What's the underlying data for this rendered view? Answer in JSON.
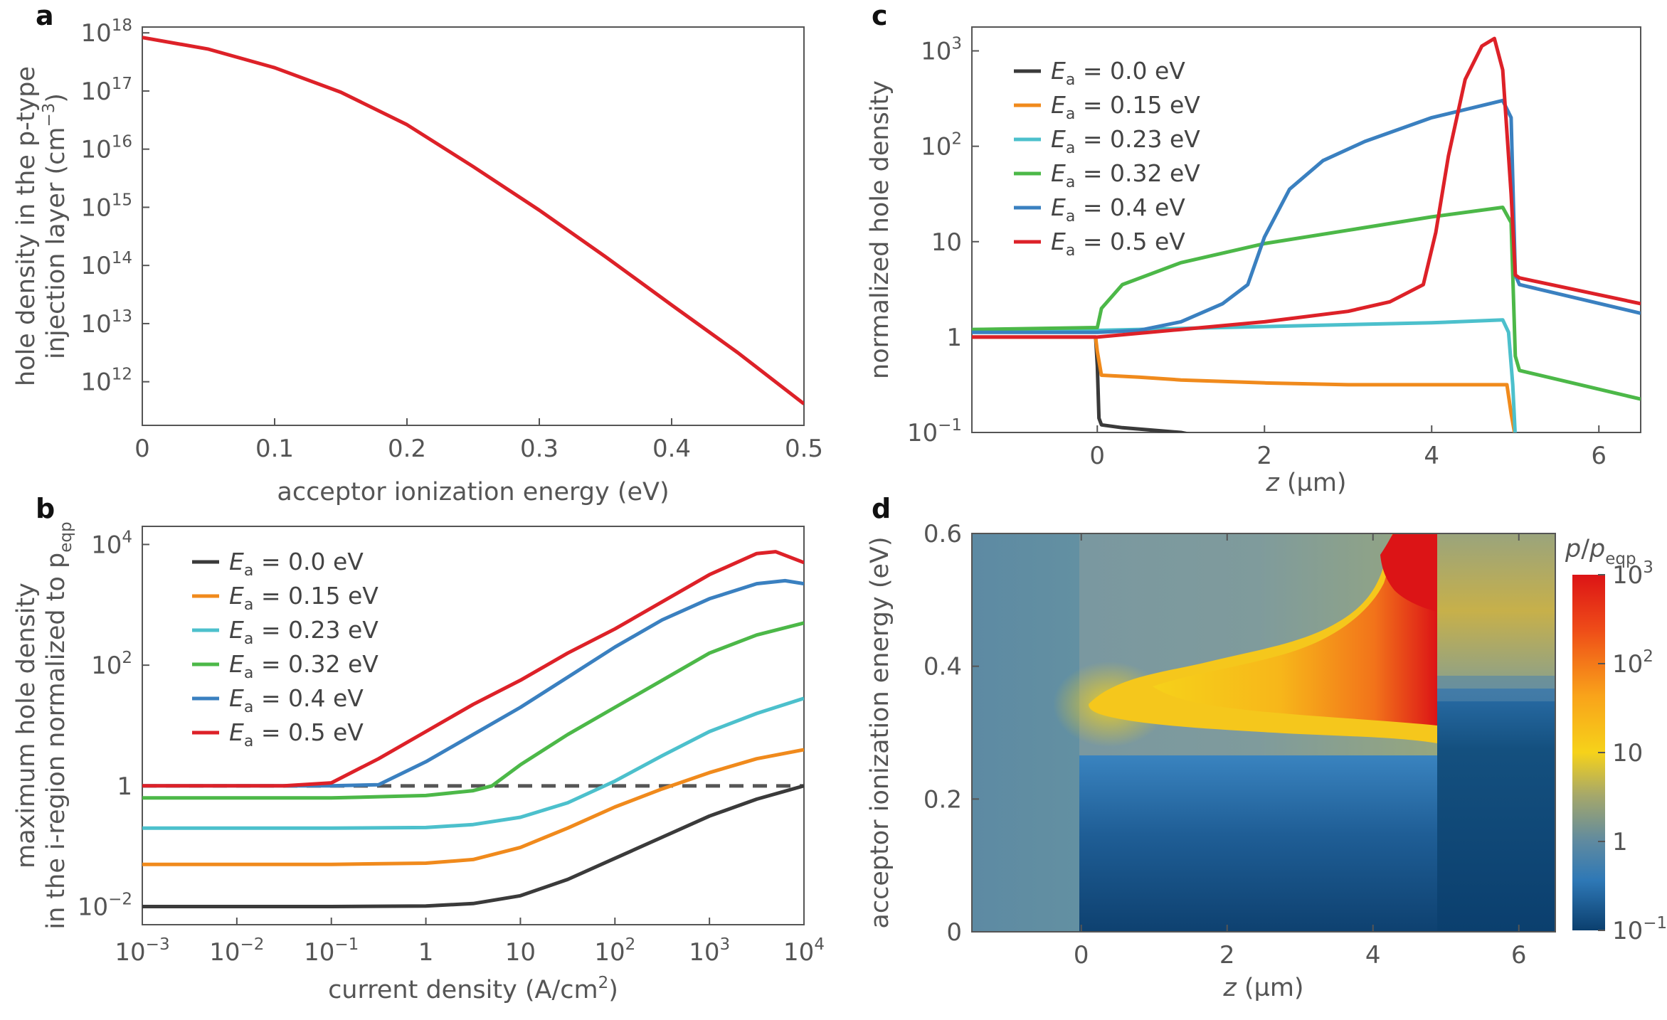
{
  "colors": {
    "Ea_0.0": "#3a3a3a",
    "Ea_0.15": "#f08a1c",
    "Ea_0.23": "#4cc0cc",
    "Ea_0.32": "#4cb848",
    "Ea_0.4": "#3a80c0",
    "Ea_0.5": "#dd2128",
    "axis": "#555555",
    "dashed": "#555555"
  },
  "chart_data": [
    {
      "panel": "a",
      "type": "line",
      "xlabel": "acceptor ionization energy (eV)",
      "ylabel_line1": "hole density in the p-type",
      "ylabel_line2": "injection layer (cm",
      "ylabel_sup": "−3",
      "ylabel_end": ")",
      "xlim": [
        0,
        0.5
      ],
      "ylim_log10": [
        11.25,
        18.1
      ],
      "xticks": [
        "0",
        "0.1",
        "0.2",
        "0.3",
        "0.4",
        "0.5"
      ],
      "yticks": [
        {
          "base": "10",
          "exp": "12"
        },
        {
          "base": "10",
          "exp": "13"
        },
        {
          "base": "10",
          "exp": "14"
        },
        {
          "base": "10",
          "exp": "15"
        },
        {
          "base": "10",
          "exp": "16"
        },
        {
          "base": "10",
          "exp": "17"
        },
        {
          "base": "10",
          "exp": "18"
        }
      ],
      "series": [
        {
          "name": "hole density",
          "color": "#dd2128",
          "x": [
            0,
            0.05,
            0.1,
            0.15,
            0.2,
            0.25,
            0.3,
            0.35,
            0.4,
            0.45,
            0.5
          ],
          "log10y": [
            17.92,
            17.72,
            17.4,
            16.98,
            16.42,
            15.7,
            14.95,
            14.15,
            13.32,
            12.5,
            11.62
          ]
        }
      ]
    },
    {
      "panel": "b",
      "type": "line",
      "xlabel": "current density (A/cm",
      "xlabel_sup": "2",
      "xlabel_end": ")",
      "ylabel_line1": "maximum hole density",
      "ylabel_line2": "in the i-region normalized to p",
      "ylabel_sub": "eqp",
      "xlim_log10": [
        -3,
        4
      ],
      "ylim_log10": [
        -2.3,
        4.3
      ],
      "xticks": [
        {
          "base": "10",
          "exp": "−3"
        },
        {
          "base": "10",
          "exp": "−2"
        },
        {
          "base": "10",
          "exp": "−1"
        },
        {
          "base": "1",
          "exp": ""
        },
        {
          "base": "10",
          "exp": ""
        },
        {
          "base": "10",
          "exp": "2"
        },
        {
          "base": "10",
          "exp": "3"
        },
        {
          "base": "10",
          "exp": "4"
        }
      ],
      "yticks": [
        {
          "base": "10",
          "exp": "−2"
        },
        {
          "base": "1",
          "exp": ""
        },
        {
          "base": "10",
          "exp": "2"
        },
        {
          "base": "10",
          "exp": "4"
        }
      ],
      "reference_line": {
        "log10y": 0,
        "style": "dashed"
      },
      "legend": [
        {
          "label": "E",
          "sub": "a",
          "rest": " = 0.0 eV",
          "color": "#3a3a3a"
        },
        {
          "label": "E",
          "sub": "a",
          "rest": " = 0.15 eV",
          "color": "#f08a1c"
        },
        {
          "label": "E",
          "sub": "a",
          "rest": " = 0.23 eV",
          "color": "#4cc0cc"
        },
        {
          "label": "E",
          "sub": "a",
          "rest": " = 0.32 eV",
          "color": "#4cb848"
        },
        {
          "label": "E",
          "sub": "a",
          "rest": " = 0.4 eV",
          "color": "#3a80c0"
        },
        {
          "label": "E",
          "sub": "a",
          "rest": " = 0.5 eV",
          "color": "#dd2128"
        }
      ],
      "series": [
        {
          "name": "Ea = 0.0 eV",
          "color": "#3a3a3a",
          "log10x": [
            -3,
            -1,
            0,
            0.5,
            1,
            1.5,
            2,
            2.5,
            3,
            3.5,
            4
          ],
          "log10y": [
            -2,
            -2,
            -1.99,
            -1.95,
            -1.82,
            -1.55,
            -1.2,
            -0.85,
            -0.5,
            -0.22,
            0
          ]
        },
        {
          "name": "Ea = 0.15 eV",
          "color": "#f08a1c",
          "log10x": [
            -3,
            -1,
            0,
            0.5,
            1,
            1.5,
            2,
            2.5,
            3,
            3.5,
            4
          ],
          "log10y": [
            -1.3,
            -1.3,
            -1.28,
            -1.22,
            -1.02,
            -0.7,
            -0.35,
            -0.05,
            0.22,
            0.45,
            0.6
          ]
        },
        {
          "name": "Ea = 0.23 eV",
          "color": "#4cc0cc",
          "log10x": [
            -3,
            -1,
            0,
            0.5,
            1,
            1.5,
            2,
            2.5,
            3,
            3.5,
            4
          ],
          "log10y": [
            -0.7,
            -0.7,
            -0.69,
            -0.64,
            -0.52,
            -0.28,
            0.08,
            0.5,
            0.9,
            1.2,
            1.45
          ]
        },
        {
          "name": "Ea = 0.32 eV",
          "color": "#4cb848",
          "log10x": [
            -3,
            -1,
            0,
            0.5,
            0.7,
            1,
            1.5,
            2,
            2.5,
            3,
            3.5,
            4
          ],
          "log10y": [
            -0.2,
            -0.2,
            -0.16,
            -0.08,
            0.0,
            0.35,
            0.85,
            1.3,
            1.75,
            2.2,
            2.5,
            2.7
          ]
        },
        {
          "name": "Ea = 0.4 eV",
          "color": "#3a80c0",
          "log10x": [
            -3,
            -1,
            -0.5,
            0,
            0.5,
            1,
            1.5,
            2,
            2.5,
            3,
            3.5,
            3.8,
            4
          ],
          "log10y": [
            0,
            0,
            0.02,
            0.4,
            0.85,
            1.3,
            1.8,
            2.3,
            2.75,
            3.1,
            3.35,
            3.4,
            3.35
          ]
        },
        {
          "name": "Ea = 0.5 eV",
          "color": "#dd2128",
          "log10x": [
            -3,
            -1.5,
            -1,
            -0.5,
            0,
            0.5,
            1,
            1.5,
            2,
            2.5,
            3,
            3.5,
            3.7,
            4
          ],
          "log10y": [
            0,
            0,
            0.05,
            0.45,
            0.9,
            1.35,
            1.75,
            2.2,
            2.6,
            3.05,
            3.5,
            3.85,
            3.88,
            3.7
          ]
        }
      ]
    },
    {
      "panel": "c",
      "type": "line",
      "xlabel": "z",
      "xlabel_rest": " (µm)",
      "ylabel": "normalized hole density",
      "xlim": [
        -1.5,
        6.5
      ],
      "ylim_log10": [
        -1,
        3.25
      ],
      "xticks": [
        "0",
        "2",
        "4",
        "6"
      ],
      "yticks": [
        {
          "base": "10",
          "exp": "−1"
        },
        {
          "base": "1",
          "exp": ""
        },
        {
          "base": "10",
          "exp": ""
        },
        {
          "base": "10",
          "exp": "2"
        },
        {
          "base": "10",
          "exp": "3"
        }
      ],
      "legend": [
        {
          "label": "E",
          "sub": "a",
          "rest": " = 0.0 eV",
          "color": "#3a3a3a"
        },
        {
          "label": "E",
          "sub": "a",
          "rest": " = 0.15 eV",
          "color": "#f08a1c"
        },
        {
          "label": "E",
          "sub": "a",
          "rest": " = 0.23 eV",
          "color": "#4cc0cc"
        },
        {
          "label": "E",
          "sub": "a",
          "rest": " = 0.32 eV",
          "color": "#4cb848"
        },
        {
          "label": "E",
          "sub": "a",
          "rest": " = 0.4 eV",
          "color": "#3a80c0"
        },
        {
          "label": "E",
          "sub": "a",
          "rest": " = 0.5 eV",
          "color": "#dd2128"
        }
      ],
      "series": [
        {
          "name": "Ea = 0.0 eV",
          "color": "#3a3a3a",
          "x": [
            -1.5,
            -0.02,
            0,
            0.02,
            0.05,
            0.3,
            1.0,
            1.3
          ],
          "log10y": [
            0,
            0,
            -0.3,
            -0.85,
            -0.92,
            -0.95,
            -1.0,
            -1.05
          ]
        },
        {
          "name": "Ea = 0.15 eV",
          "color": "#f08a1c",
          "x": [
            -1.5,
            -0.02,
            0,
            0.05,
            0.5,
            1,
            2,
            3,
            4,
            4.9,
            4.95,
            5.0
          ],
          "log10y": [
            0,
            0,
            -0.15,
            -0.4,
            -0.42,
            -0.45,
            -0.48,
            -0.5,
            -0.5,
            -0.5,
            -0.8,
            -1.05
          ]
        },
        {
          "name": "Ea = 0.23 eV",
          "color": "#4cc0cc",
          "x": [
            -1.5,
            0,
            1,
            2,
            3,
            4,
            4.85,
            4.92,
            4.97,
            5.0
          ],
          "log10y": [
            0.08,
            0.07,
            0.09,
            0.11,
            0.13,
            0.15,
            0.18,
            0.05,
            -0.5,
            -1.05
          ]
        },
        {
          "name": "Ea = 0.32 eV",
          "color": "#4cb848",
          "x": [
            -1.5,
            0,
            0.05,
            0.3,
            1,
            2,
            3,
            4,
            4.85,
            4.95,
            5.0,
            5.05,
            6.5
          ],
          "log10y": [
            0.08,
            0.1,
            0.3,
            0.55,
            0.78,
            0.98,
            1.12,
            1.26,
            1.36,
            1.2,
            -0.2,
            -0.35,
            -0.65
          ]
        },
        {
          "name": "Ea = 0.4 eV",
          "color": "#3a80c0",
          "x": [
            -1.5,
            0,
            0.5,
            1,
            1.5,
            1.8,
            2.0,
            2.3,
            2.7,
            3.2,
            4,
            4.85,
            4.95,
            5.0,
            5.05,
            6.5
          ],
          "log10y": [
            0.05,
            0.05,
            0.07,
            0.16,
            0.35,
            0.55,
            1.05,
            1.55,
            1.85,
            2.05,
            2.3,
            2.48,
            2.3,
            0.65,
            0.55,
            0.25
          ]
        },
        {
          "name": "Ea = 0.5 eV",
          "color": "#dd2128",
          "x": [
            -1.5,
            0,
            1,
            2,
            3,
            3.5,
            3.9,
            4.05,
            4.2,
            4.4,
            4.6,
            4.75,
            4.85,
            4.95,
            5.0,
            5.05,
            6.5
          ],
          "log10y": [
            0,
            0,
            0.08,
            0.16,
            0.27,
            0.37,
            0.55,
            1.1,
            1.9,
            2.7,
            3.05,
            3.13,
            2.8,
            1.5,
            0.65,
            0.62,
            0.35
          ]
        }
      ]
    },
    {
      "panel": "d",
      "type": "heatmap",
      "xlabel": "z",
      "xlabel_rest": " (µm)",
      "ylabel": "acceptor ionization energy (eV)",
      "xlim": [
        -1.5,
        6.5
      ],
      "ylim": [
        0,
        0.6
      ],
      "xticks": [
        "0",
        "2",
        "4",
        "6"
      ],
      "yticks": [
        "0",
        "0.2",
        "0.4",
        "0.6"
      ],
      "colorbar": {
        "label": "p",
        "label_sep": "/",
        "label2": "p",
        "label_sub": "eqp",
        "log10_range": [
          -1,
          3
        ],
        "ticks": [
          {
            "base": "10",
            "exp": "−1"
          },
          {
            "base": "1",
            "exp": ""
          },
          {
            "base": "10",
            "exp": ""
          },
          {
            "base": "10",
            "exp": "2"
          },
          {
            "base": "10",
            "exp": "3"
          }
        ],
        "stops": [
          "#0b3f6e",
          "#2e78b6",
          "#5f8aa0",
          "#a6a86a",
          "#f6d21a",
          "#f9a31a",
          "#ee4a18",
          "#dc1416"
        ]
      },
      "regions": [
        {
          "name": "left of junction",
          "x": [
            -1.5,
            0
          ],
          "log10_value": 0.05
        },
        {
          "name": "i-region low Ea",
          "x": [
            0,
            5
          ],
          "Ea_range": [
            0,
            0.27
          ],
          "log10_value_bottom": -0.85,
          "log10_value_top": -0.2
        },
        {
          "name": "i-region hot spot",
          "peak_z": 4.8,
          "peak_Ea": 0.6,
          "log10_value": 3.1
        },
        {
          "name": "right of junction",
          "x": [
            5,
            6.5
          ],
          "Ea_split": 0.37,
          "log10_value_low": -0.85,
          "log10_value_high": 0.8
        }
      ]
    }
  ]
}
